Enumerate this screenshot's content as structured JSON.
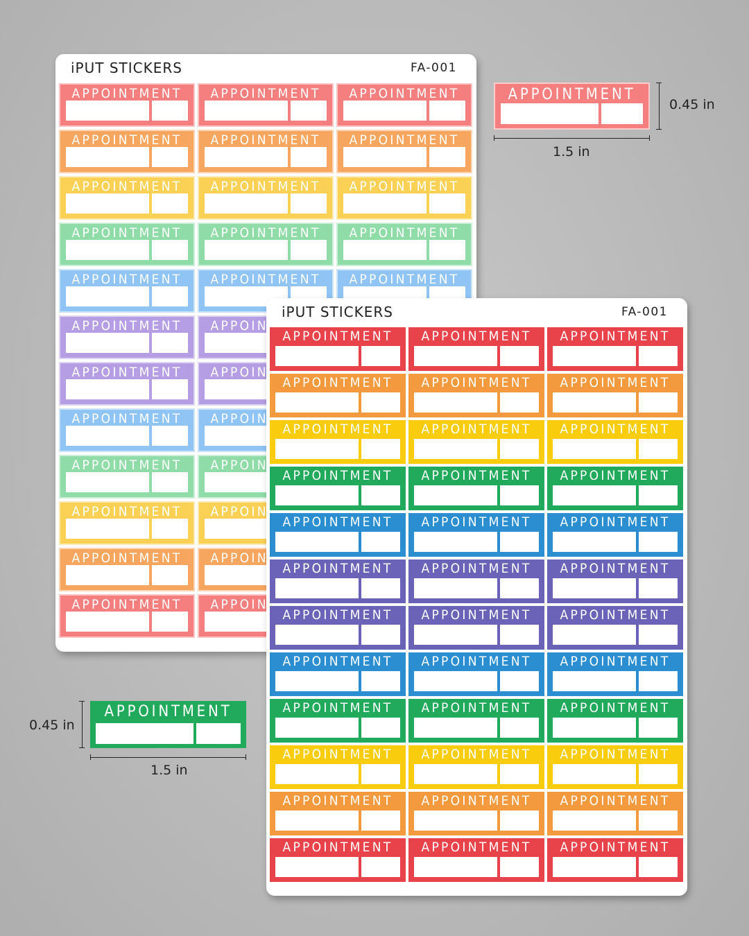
{
  "sheets": [
    {
      "brand": "iPUT STICKERS",
      "code": "FA-001",
      "style": "pastel",
      "row_colors": [
        "#f57f7f",
        "#f7a65f",
        "#fbd155",
        "#8fdca8",
        "#8fc4f4",
        "#b59ee3",
        "#b59ee3",
        "#8fc4f4",
        "#8fdca8",
        "#fbd155",
        "#f7a65f",
        "#f57f7f"
      ],
      "sticker_label": "APPOINTMENT"
    },
    {
      "brand": "iPUT STICKERS",
      "code": "FA-001",
      "style": "bright",
      "row_colors": [
        "#e8434a",
        "#f39a3e",
        "#f9cc0d",
        "#22aa5c",
        "#2a8ed0",
        "#6a63b8",
        "#6a63b8",
        "#2a8ed0",
        "#22aa5c",
        "#f9cc0d",
        "#f39a3e",
        "#e8434a"
      ],
      "sticker_label": "APPOINTMENT"
    }
  ],
  "samples": [
    {
      "label": "APPOINTMENT",
      "color": "#f57f7f",
      "height": "0.45 in",
      "width": "1.5 in"
    },
    {
      "label": "APPOINTMENT",
      "color": "#22aa5c",
      "height": "0.45 in",
      "width": "1.5 in"
    }
  ]
}
